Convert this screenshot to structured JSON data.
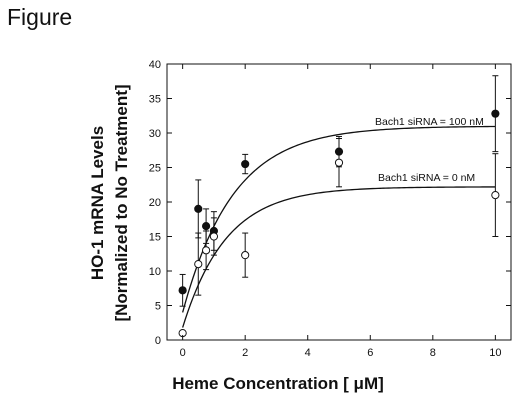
{
  "figure_label": "Figure",
  "chart_data": {
    "type": "scatter",
    "title": "",
    "xlabel": "Heme Concentration [ μM]",
    "ylabel_line1": "HO-1 mRNA Levels",
    "ylabel_line2": "[Normalized to No Treatment]",
    "xlim": [
      -0.5,
      10.5
    ],
    "ylim": [
      0,
      40
    ],
    "xticks": [
      0,
      2,
      4,
      6,
      8,
      10
    ],
    "yticks": [
      0,
      5,
      10,
      15,
      20,
      25,
      30,
      35,
      40
    ],
    "grid": false,
    "legend": "none",
    "series": [
      {
        "label": "Bach1 siRNA = 100 nM",
        "marker": "filled-circle",
        "points": [
          {
            "x": 0,
            "y": 7.2,
            "err": 2.3
          },
          {
            "x": 0.5,
            "y": 19.0,
            "err": 4.2
          },
          {
            "x": 0.75,
            "y": 16.5,
            "err": 2.5
          },
          {
            "x": 1,
            "y": 15.8,
            "err": 2.8
          },
          {
            "x": 2,
            "y": 25.5,
            "err": 1.4
          },
          {
            "x": 5,
            "y": 27.3,
            "err": 2.2
          },
          {
            "x": 10,
            "y": 32.8,
            "err": 5.5
          }
        ],
        "fit": {
          "plateau": 31.0,
          "y0": 4.0,
          "k": 0.62
        }
      },
      {
        "label": "Bach1 siRNA = 0 nM",
        "marker": "open-circle",
        "points": [
          {
            "x": 0,
            "y": 1.0,
            "err": 0
          },
          {
            "x": 0.5,
            "y": 11.0,
            "err": 4.5
          },
          {
            "x": 0.75,
            "y": 13.0,
            "err": 2.8
          },
          {
            "x": 1,
            "y": 15.0,
            "err": 2.7
          },
          {
            "x": 2,
            "y": 12.3,
            "err": 3.2
          },
          {
            "x": 5,
            "y": 25.7,
            "err": 3.5
          },
          {
            "x": 10,
            "y": 21.0,
            "err": 6.0
          }
        ],
        "fit": {
          "plateau": 22.2,
          "y0": 1.8,
          "k": 0.72
        }
      }
    ]
  }
}
